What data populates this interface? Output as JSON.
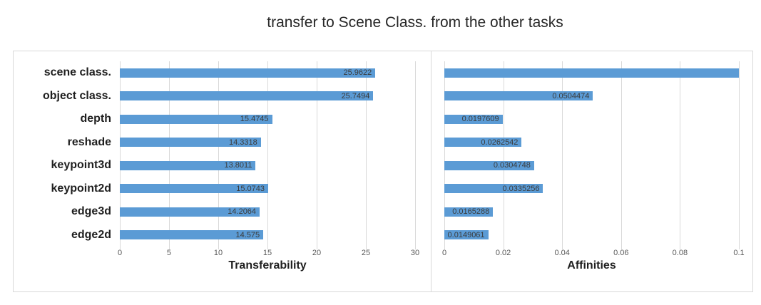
{
  "title": "transfer to Scene Class. from the other tasks",
  "colors": {
    "bar": "#5B9BD5",
    "gridline": "#D9D9D9",
    "panel_border": "#D9D9D9",
    "tick_text": "#595959",
    "data_label_text": "#3B3B3B",
    "category_text": "#1F1F1F",
    "title_text": "#262626"
  },
  "chart_data": [
    {
      "type": "bar",
      "orientation": "horizontal",
      "xlabel": "Transferability",
      "categories": [
        "scene class.",
        "object class.",
        "depth",
        "reshade",
        "keypoint3d",
        "keypoint2d",
        "edge3d",
        "edge2d"
      ],
      "values": [
        25.9622,
        25.7494,
        15.4745,
        14.3318,
        13.8011,
        15.0743,
        14.2064,
        14.575
      ],
      "data_labels": [
        "25.9622",
        "25.7494",
        "15.4745",
        "14.3318",
        "13.8011",
        "15.0743",
        "14.2064",
        "14.575"
      ],
      "xlim": [
        0,
        30
      ],
      "xticks": [
        0,
        5,
        10,
        15,
        20,
        25,
        30
      ],
      "xtick_labels": [
        "0",
        "5",
        "10",
        "15",
        "20",
        "25",
        "30"
      ],
      "grid": true,
      "legend": "none",
      "show_category_labels": true
    },
    {
      "type": "bar",
      "orientation": "horizontal",
      "xlabel": "Affinities",
      "categories": [
        "scene class.",
        "object class.",
        "depth",
        "reshade",
        "keypoint3d",
        "keypoint2d",
        "edge3d",
        "edge2d"
      ],
      "values": [
        0.1,
        0.0504474,
        0.0197609,
        0.0262542,
        0.0304748,
        0.0335256,
        0.0165288,
        0.0149061
      ],
      "data_labels": [
        "",
        "0.0504474",
        "0.0197609",
        "0.0262542",
        "0.0304748",
        "0.0335256",
        "0.0165288",
        "0.0149061"
      ],
      "xlim": [
        0,
        0.1
      ],
      "xticks": [
        0,
        0.02,
        0.04,
        0.06,
        0.08,
        0.1
      ],
      "xtick_labels": [
        "0",
        "0.02",
        "0.04",
        "0.06",
        "0.08",
        "0.1"
      ],
      "grid": true,
      "legend": "none",
      "show_category_labels": false
    }
  ]
}
